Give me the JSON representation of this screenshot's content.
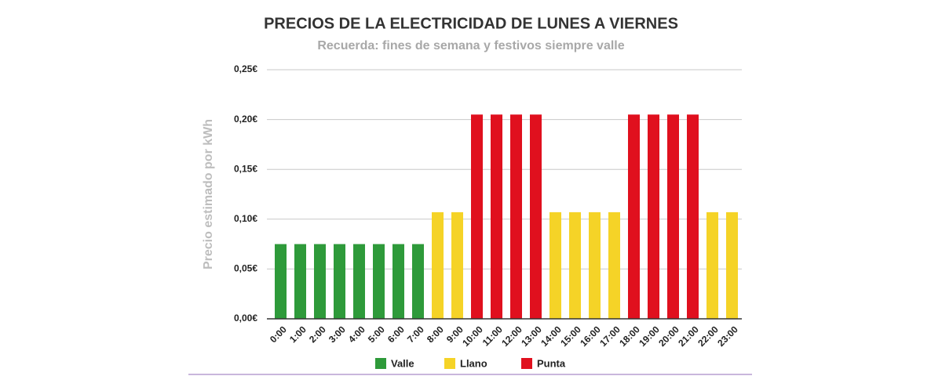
{
  "chart_data": {
    "type": "bar",
    "title": "PRECIOS DE LA ELECTRICIDAD DE LUNES A VIERNES",
    "subtitle": "Recuerda: fines de semana y festivos siempre valle",
    "y_label": "Precio estimado por kWh",
    "categories": [
      "0:00",
      "1:00",
      "2:00",
      "3:00",
      "4:00",
      "5:00",
      "6:00",
      "7:00",
      "8:00",
      "9:00",
      "10:00",
      "11:00",
      "12:00",
      "13:00",
      "14:00",
      "15:00",
      "16:00",
      "17:00",
      "18:00",
      "19:00",
      "20:00",
      "21:00",
      "22:00",
      "23:00"
    ],
    "series": [
      {
        "name": "Valle",
        "color": "#2e9a3a",
        "values": [
          0.075,
          0.075,
          0.075,
          0.075,
          0.075,
          0.075,
          0.075,
          0.075,
          null,
          null,
          null,
          null,
          null,
          null,
          null,
          null,
          null,
          null,
          null,
          null,
          null,
          null,
          null,
          null
        ]
      },
      {
        "name": "Llano",
        "color": "#f5d327",
        "values": [
          null,
          null,
          null,
          null,
          null,
          null,
          null,
          null,
          0.107,
          0.107,
          null,
          null,
          null,
          null,
          0.107,
          0.107,
          0.107,
          0.107,
          null,
          null,
          null,
          null,
          0.107,
          0.107
        ]
      },
      {
        "name": "Punta",
        "color": "#e0101e",
        "values": [
          null,
          null,
          null,
          null,
          null,
          null,
          null,
          null,
          null,
          null,
          0.205,
          0.205,
          0.205,
          0.205,
          null,
          null,
          null,
          null,
          0.205,
          0.205,
          0.205,
          0.205,
          null,
          null
        ]
      }
    ],
    "ylim": [
      0,
      0.25
    ],
    "yticks": [
      {
        "value": 0,
        "label": "0,00€"
      },
      {
        "value": 0.05,
        "label": "0,05€"
      },
      {
        "value": 0.1,
        "label": "0,10€"
      },
      {
        "value": 0.15,
        "label": "0,15€"
      },
      {
        "value": 0.2,
        "label": "0,20€"
      },
      {
        "value": 0.25,
        "label": "0,25€"
      }
    ],
    "grid": true,
    "legend": "bottom"
  }
}
